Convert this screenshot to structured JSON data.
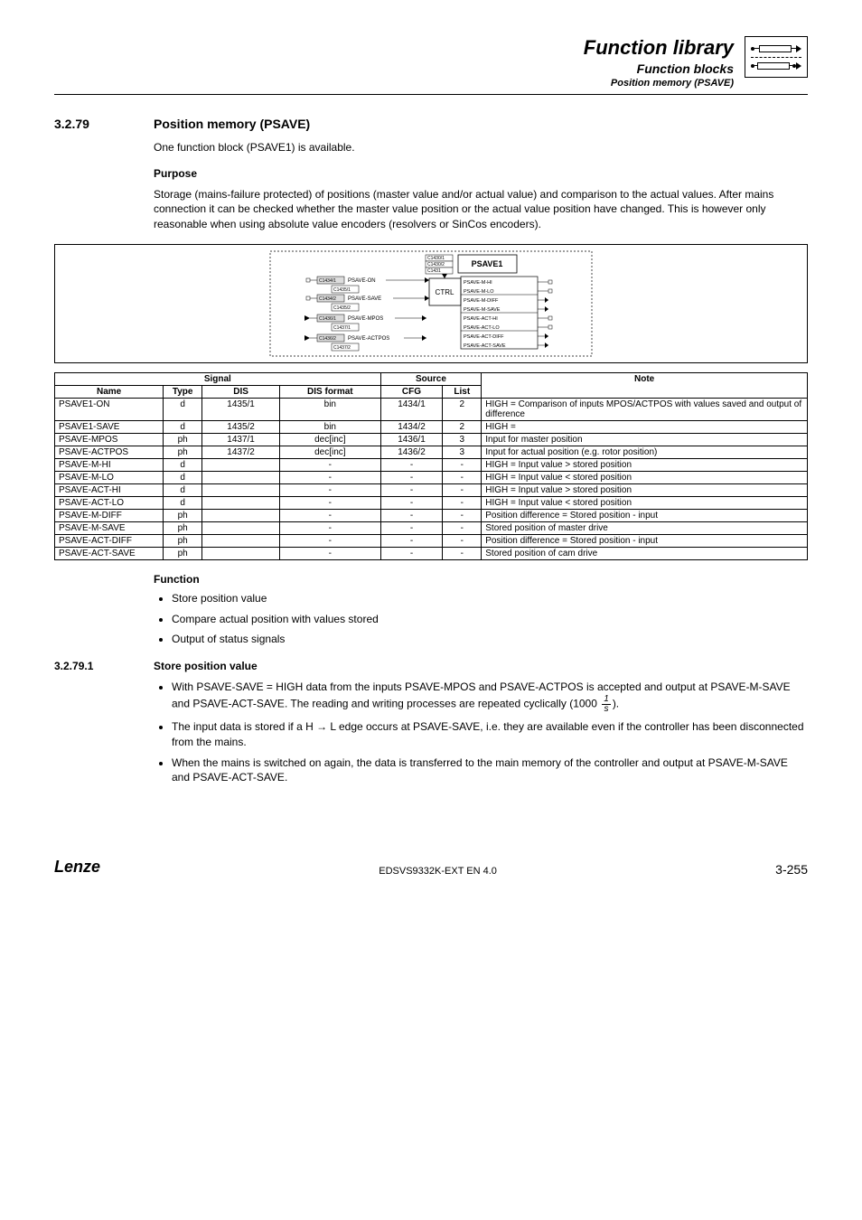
{
  "header": {
    "title": "Function library",
    "sub": "Function blocks",
    "subsub": "Position memory (PSAVE)"
  },
  "section": {
    "num": "3.2.79",
    "title": "Position memory (PSAVE)"
  },
  "intro": "One function block (PSAVE1) is available.",
  "purpose_head": "Purpose",
  "purpose_text": "Storage (mains-failure protected) of positions (master value and/or actual value) and comparison to the actual values. After mains connection it can be checked whether the master value position or the actual value position have changed. This is however only reasonable when using absolute value encoders (resolvers or SinCos encoders).",
  "diagram": {
    "block_label": "PSAVE1",
    "ctrl_label": "CTRL",
    "top_codes": [
      "C1430/1",
      "C1430/2",
      "C1431"
    ],
    "inputs": [
      {
        "code": "C1434/1",
        "code_inner": "C1435/1",
        "label": "PSAVE-ON"
      },
      {
        "code": "C1434/2",
        "code_inner": "C1435/2",
        "label": "PSAVE-SAVE"
      },
      {
        "code": "C1436/1",
        "code_inner": "C1437/1",
        "label": "PSAVE-MPOS"
      },
      {
        "code": "C1436/2",
        "code_inner": "C1437/2",
        "label": "PSAVE-ACTPOS"
      }
    ],
    "outputs": [
      "PSAVE-M-HI",
      "PSAVE-M-LO",
      "PSAVE-M-DIFF",
      "PSAVE-M-SAVE",
      "PSAVE-ACT-HI",
      "PSAVE-ACT-LO",
      "PSAVE-ACT-DIFF",
      "PSAVE-ACT-SAVE"
    ]
  },
  "table": {
    "group_headers": [
      "Signal",
      "Source",
      "Note"
    ],
    "col_headers": [
      "Name",
      "Type",
      "DIS",
      "DIS format",
      "CFG",
      "List"
    ],
    "rows": [
      [
        "PSAVE1-ON",
        "d",
        "1435/1",
        "bin",
        "1434/1",
        "2",
        "HIGH = Comparison of inputs MPOS/ACTPOS with values saved and output of difference"
      ],
      [
        "PSAVE1-SAVE",
        "d",
        "1435/2",
        "bin",
        "1434/2",
        "2",
        "HIGH ="
      ],
      [
        "PSAVE-MPOS",
        "ph",
        "1437/1",
        "dec[inc]",
        "1436/1",
        "3",
        "Input for master position"
      ],
      [
        "PSAVE-ACTPOS",
        "ph",
        "1437/2",
        "dec[inc]",
        "1436/2",
        "3",
        "Input for actual position (e.g. rotor position)"
      ],
      [
        "PSAVE-M-HI",
        "d",
        "",
        "-",
        "-",
        "-",
        "HIGH = Input value > stored position"
      ],
      [
        "PSAVE-M-LO",
        "d",
        "",
        "-",
        "-",
        "-",
        "HIGH = Input value < stored position"
      ],
      [
        "PSAVE-ACT-HI",
        "d",
        "",
        "-",
        "-",
        "-",
        "HIGH = Input value > stored position"
      ],
      [
        "PSAVE-ACT-LO",
        "d",
        "",
        "-",
        "-",
        "-",
        "HIGH = Input value < stored position"
      ],
      [
        "PSAVE-M-DIFF",
        "ph",
        "",
        "-",
        "-",
        "-",
        "Position difference = Stored position - input"
      ],
      [
        "PSAVE-M-SAVE",
        "ph",
        "",
        "-",
        "-",
        "-",
        "Stored position of master drive"
      ],
      [
        "PSAVE-ACT-DIFF",
        "ph",
        "",
        "-",
        "-",
        "-",
        "Position difference = Stored position - input"
      ],
      [
        "PSAVE-ACT-SAVE",
        "ph",
        "",
        "-",
        "-",
        "-",
        "Stored position of cam drive"
      ]
    ]
  },
  "function_head": "Function",
  "function_bullets": [
    "Store position value",
    "Compare actual position with values stored",
    "Output of status signals"
  ],
  "subsection": {
    "num": "3.2.79.1",
    "title": "Store position value"
  },
  "store_bullets_pre": "With PSAVE-SAVE = HIGH data from the inputs PSAVE-MPOS and PSAVE-ACTPOS is accepted and output at PSAVE-M-SAVE and PSAVE-ACT-SAVE. The reading and writing processes are repeated cyclically (1000 ",
  "store_bullets_post": ").",
  "frac": {
    "num": "1",
    "den": "s"
  },
  "store_bullet2": "The input data is stored if a H → L edge occurs at PSAVE-SAVE, i.e. they are available even if the controller has been disconnected from the mains.",
  "store_bullet3": "When the mains is switched on again, the data is transferred to the main memory of the controller and output at PSAVE-M-SAVE and PSAVE-ACT-SAVE.",
  "footer": {
    "brand": "Lenze",
    "doc": "EDSVS9332K-EXT EN 4.0",
    "page": "3-255"
  }
}
